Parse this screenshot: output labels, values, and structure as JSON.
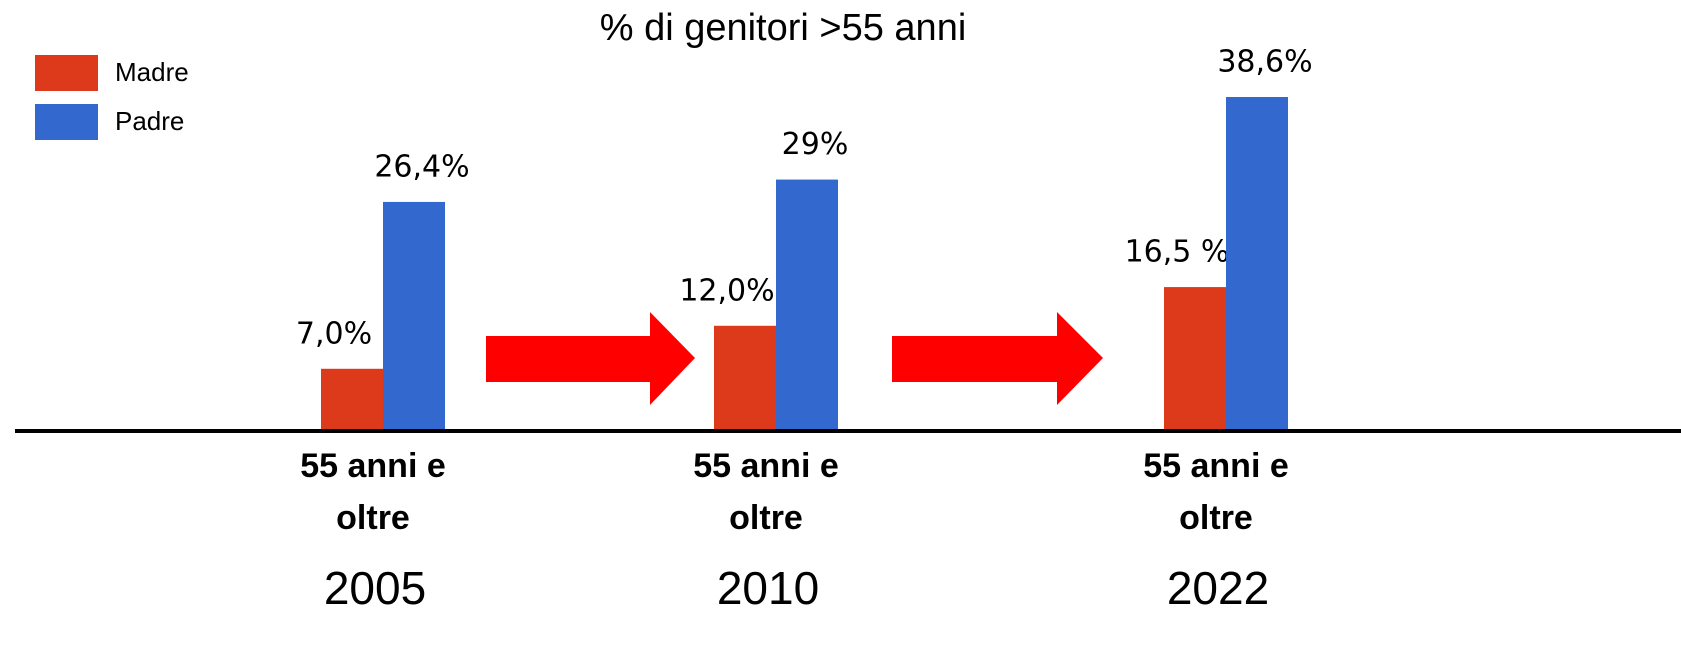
{
  "chart_data": {
    "type": "bar",
    "title": "% di genitori >55 anni",
    "categories": [
      "55 anni e oltre",
      "55 anni e oltre",
      "55 anni e oltre"
    ],
    "years": [
      "2005",
      "2010",
      "2022"
    ],
    "series": [
      {
        "name": "Madre",
        "color": "#dc3a1a",
        "values": [
          7.0,
          12.0,
          16.5
        ],
        "value_labels": [
          "7,0%",
          "12,0%",
          "16,5 %"
        ]
      },
      {
        "name": "Padre",
        "color": "#3368cf",
        "values": [
          26.4,
          29,
          38.6
        ],
        "value_labels": [
          "26,4%",
          "29%",
          "38,6%"
        ]
      }
    ],
    "legend": "top-left",
    "grid": false
  }
}
